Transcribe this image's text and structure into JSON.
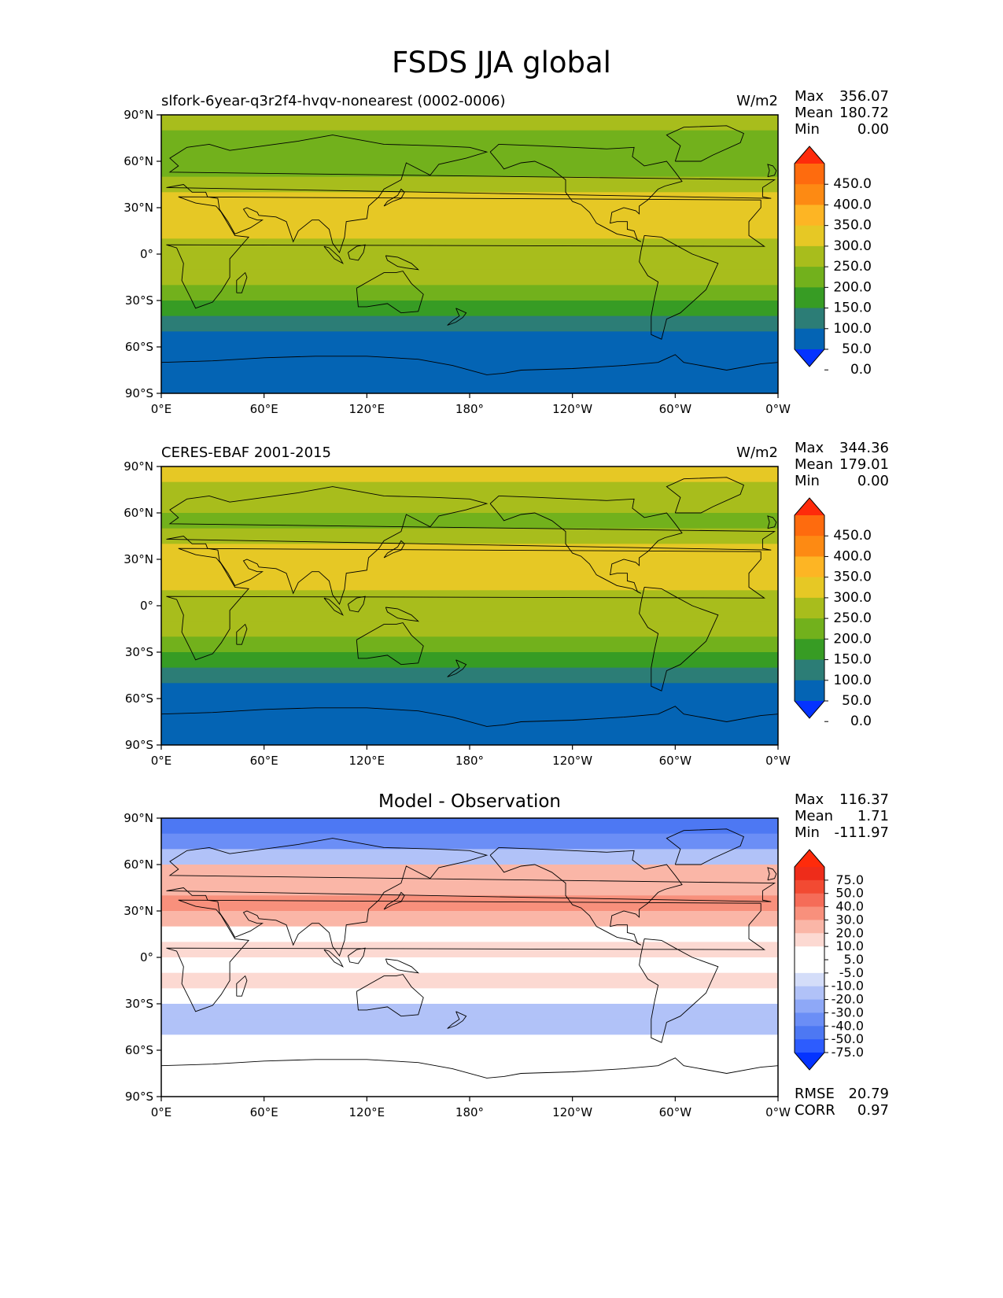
{
  "figure": {
    "title": "FSDS JJA global"
  },
  "colors": {
    "abs_levels": [
      "#0433ff",
      "#0464b4",
      "#2c7d76",
      "#379c24",
      "#72b11c",
      "#a8bd1c",
      "#e6c825",
      "#fdb524",
      "#fd8a13",
      "#fe6b0e",
      "#fe2b0b"
    ],
    "diff_levels": [
      "#0433ff",
      "#2d5cfe",
      "#4d78f3",
      "#6b8ef6",
      "#8ea8f7",
      "#b1c2f8",
      "#d4ddf9",
      "#ffffff",
      "#ffffff",
      "#fcd9d2",
      "#fab6a7",
      "#f8907c",
      "#f56c58",
      "#f24a32",
      "#ee2c1a",
      "#fe2b0b"
    ],
    "coast": "#000000"
  },
  "panels": [
    {
      "id": "model",
      "subtitle_left": "slfork-6year-q3r2f4-hvqv-nonearest (0002-0006)",
      "subtitle_center": "",
      "units": "W/m2",
      "stats": [
        {
          "label": "Max",
          "value": "356.07"
        },
        {
          "label": "Mean",
          "value": "180.72"
        },
        {
          "label": "Min",
          "value": "0.00"
        }
      ],
      "metrics": []
    },
    {
      "id": "obs",
      "subtitle_left": "CERES-EBAF 2001-2015",
      "subtitle_center": "",
      "units": "W/m2",
      "stats": [
        {
          "label": "Max",
          "value": "344.36"
        },
        {
          "label": "Mean",
          "value": "179.01"
        },
        {
          "label": "Min",
          "value": "0.00"
        }
      ],
      "metrics": []
    },
    {
      "id": "diff",
      "subtitle_left": "",
      "subtitle_center": "Model - Observation",
      "units": "",
      "stats": [
        {
          "label": "Max",
          "value": "116.37"
        },
        {
          "label": "Mean",
          "value": "1.71"
        },
        {
          "label": "Min",
          "value": "-111.97"
        }
      ],
      "metrics": [
        {
          "label": "RMSE",
          "value": "20.79"
        },
        {
          "label": "CORR",
          "value": "0.97"
        }
      ]
    }
  ],
  "chart_data": [
    {
      "type": "heatmap",
      "title": "slfork-6year-q3r2f4-hvqv-nonearest (0002-0006)",
      "units": "W/m2",
      "x_ticks": [
        "0°E",
        "60°E",
        "120°E",
        "180°",
        "120°W",
        "60°W",
        "0°W"
      ],
      "y_ticks": [
        "90°N",
        "60°N",
        "30°N",
        "0°",
        "30°S",
        "60°S",
        "90°S"
      ],
      "xlim": [
        0,
        360
      ],
      "ylim": [
        -90,
        90
      ],
      "colorbar_ticks": [
        "450.0",
        "400.0",
        "350.0",
        "300.0",
        "250.0",
        "200.0",
        "150.0",
        "100.0",
        "50.0",
        "0.0"
      ],
      "colorbar_extend": "both",
      "lat_bands": {
        "lat": [
          85,
          75,
          65,
          55,
          45,
          35,
          25,
          15,
          5,
          -5,
          -15,
          -25,
          -35,
          -45,
          -55,
          -65,
          -75,
          -85
        ],
        "value": [
          210,
          190,
          175,
          160,
          205,
          265,
          285,
          255,
          215,
          245,
          220,
          195,
          130,
          85,
          40,
          35,
          35,
          5
        ]
      }
    },
    {
      "type": "heatmap",
      "title": "CERES-EBAF 2001-2015",
      "units": "W/m2",
      "x_ticks": [
        "0°E",
        "60°E",
        "120°E",
        "180°",
        "120°W",
        "60°W",
        "0°W"
      ],
      "y_ticks": [
        "90°N",
        "60°N",
        "30°N",
        "0°",
        "30°S",
        "60°S",
        "90°S"
      ],
      "xlim": [
        0,
        360
      ],
      "ylim": [
        -90,
        90
      ],
      "colorbar_ticks": [
        "450.0",
        "400.0",
        "350.0",
        "300.0",
        "250.0",
        "200.0",
        "150.0",
        "100.0",
        "50.0",
        "0.0"
      ],
      "colorbar_extend": "both",
      "lat_bands": {
        "lat": [
          85,
          75,
          65,
          55,
          45,
          35,
          25,
          15,
          5,
          -5,
          -15,
          -25,
          -35,
          -45,
          -55,
          -65,
          -75,
          -85
        ],
        "value": [
          250,
          230,
          205,
          180,
          200,
          255,
          275,
          255,
          215,
          245,
          210,
          185,
          140,
          90,
          45,
          35,
          35,
          5
        ]
      }
    },
    {
      "type": "heatmap",
      "title": "Model - Observation",
      "units": "",
      "x_ticks": [
        "0°E",
        "60°E",
        "120°E",
        "180°",
        "120°W",
        "60°W",
        "0°W"
      ],
      "y_ticks": [
        "90°N",
        "60°N",
        "30°N",
        "0°",
        "30°S",
        "60°S",
        "90°S"
      ],
      "xlim": [
        0,
        360
      ],
      "ylim": [
        -90,
        90
      ],
      "colorbar_ticks": [
        "75.0",
        "50.0",
        "40.0",
        "30.0",
        "20.0",
        "10.0",
        "5.0",
        "-5.0",
        "-10.0",
        "-20.0",
        "-30.0",
        "-40.0",
        "-50.0",
        "-75.0"
      ],
      "colorbar_extend": "both",
      "lat_bands": {
        "lat": [
          85,
          75,
          65,
          55,
          45,
          35,
          25,
          15,
          5,
          -5,
          -15,
          -25,
          -35,
          -45,
          -55,
          -65,
          -75,
          -85
        ],
        "value": [
          -45,
          -35,
          -10,
          15,
          20,
          30,
          20,
          5,
          10,
          5,
          10,
          5,
          -10,
          -10,
          0,
          0,
          0,
          0
        ]
      }
    }
  ]
}
